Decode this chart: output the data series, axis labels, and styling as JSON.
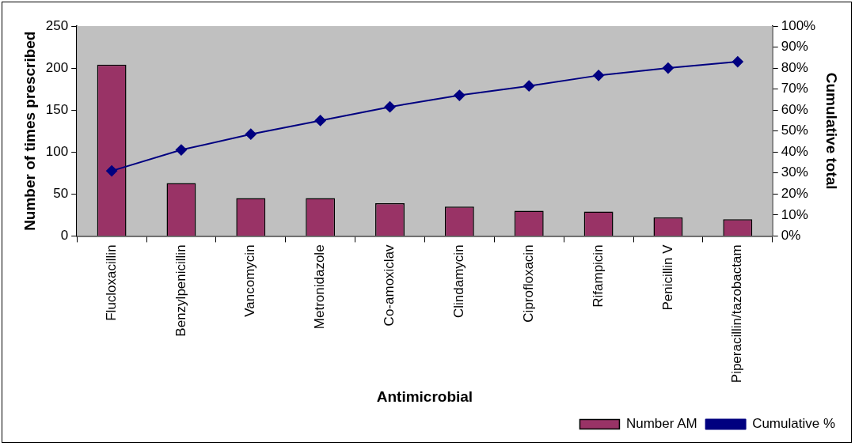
{
  "chart_data": {
    "type": "bar",
    "xlabel": "Antimicrobial",
    "ylabel": "Number of times prescribed",
    "y2label": "Cumulative total",
    "categories": [
      "Flucloxacillin",
      "Benzylpenicillin",
      "Vancomycin",
      "Metronidazole",
      "Co-amoxiclav",
      "Clindamycin",
      "Ciprofloxacin",
      "Rifampicin",
      "Penicillin V",
      "Piperacillin/tazobactam"
    ],
    "series": [
      {
        "name": "Number AM",
        "color": "#993366",
        "values": [
          204,
          63,
          45,
          45,
          39,
          35,
          30,
          29,
          22,
          20
        ]
      },
      {
        "name": "Cumulative %",
        "type": "line",
        "axis": "y2",
        "color": "#000080",
        "marker": "diamond",
        "values": [
          31,
          41,
          48.5,
          55,
          61.5,
          67,
          71.5,
          76.5,
          80,
          83
        ]
      }
    ],
    "ylim": [
      0,
      250
    ],
    "yticks": [
      0,
      50,
      100,
      150,
      200,
      250
    ],
    "y2lim": [
      0,
      100
    ],
    "y2ticks": [
      {
        "value": 0,
        "label": "0%"
      },
      {
        "value": 10,
        "label": "10%"
      },
      {
        "value": 20,
        "label": "20%"
      },
      {
        "value": 30,
        "label": "30%"
      },
      {
        "value": 40,
        "label": "40%"
      },
      {
        "value": 50,
        "label": "50%"
      },
      {
        "value": 60,
        "label": "60%"
      },
      {
        "value": 70,
        "label": "70%"
      },
      {
        "value": 80,
        "label": "80%"
      },
      {
        "value": 90,
        "label": "90%"
      },
      {
        "value": 100,
        "label": "100%"
      }
    ],
    "grid": false,
    "legend": "bottom right"
  }
}
